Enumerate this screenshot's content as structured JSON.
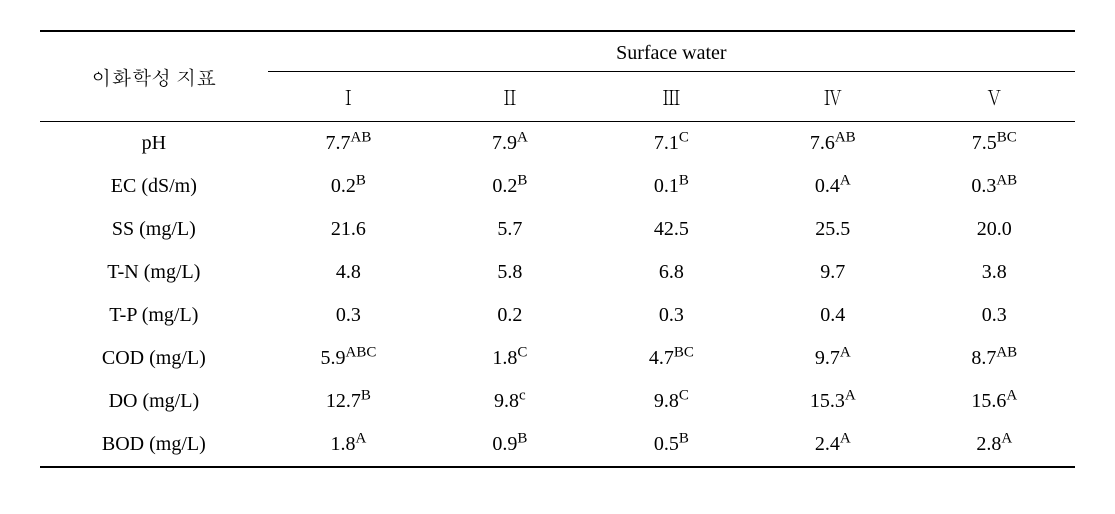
{
  "table": {
    "corner_label": "이화학성 지표",
    "spanning_header": "Surface water",
    "column_headers": [
      "Ⅰ",
      "Ⅱ",
      "Ⅲ",
      "Ⅳ",
      "Ⅴ"
    ],
    "rows": [
      {
        "label": "pH",
        "cells": [
          {
            "val": "7.7",
            "sup": "AB"
          },
          {
            "val": "7.9",
            "sup": "A"
          },
          {
            "val": "7.1",
            "sup": "C"
          },
          {
            "val": "7.6",
            "sup": "AB"
          },
          {
            "val": "7.5",
            "sup": "BC"
          }
        ]
      },
      {
        "label": "EC (dS/m)",
        "cells": [
          {
            "val": "0.2",
            "sup": "B"
          },
          {
            "val": "0.2",
            "sup": "B"
          },
          {
            "val": "0.1",
            "sup": "B"
          },
          {
            "val": "0.4",
            "sup": "A"
          },
          {
            "val": "0.3",
            "sup": "AB"
          }
        ]
      },
      {
        "label": "SS (mg/L)",
        "cells": [
          {
            "val": "21.6",
            "sup": ""
          },
          {
            "val": "5.7",
            "sup": ""
          },
          {
            "val": "42.5",
            "sup": ""
          },
          {
            "val": "25.5",
            "sup": ""
          },
          {
            "val": "20.0",
            "sup": ""
          }
        ]
      },
      {
        "label": "T-N (mg/L)",
        "cells": [
          {
            "val": "4.8",
            "sup": ""
          },
          {
            "val": "5.8",
            "sup": ""
          },
          {
            "val": "6.8",
            "sup": ""
          },
          {
            "val": "9.7",
            "sup": ""
          },
          {
            "val": "3.8",
            "sup": ""
          }
        ]
      },
      {
        "label": "T-P (mg/L)",
        "cells": [
          {
            "val": "0.3",
            "sup": ""
          },
          {
            "val": "0.2",
            "sup": ""
          },
          {
            "val": "0.3",
            "sup": ""
          },
          {
            "val": "0.4",
            "sup": ""
          },
          {
            "val": "0.3",
            "sup": ""
          }
        ]
      },
      {
        "label": "COD (mg/L)",
        "cells": [
          {
            "val": "5.9",
            "sup": "ABC"
          },
          {
            "val": "1.8",
            "sup": "C"
          },
          {
            "val": "4.7",
            "sup": "BC"
          },
          {
            "val": "9.7",
            "sup": "A"
          },
          {
            "val": "8.7",
            "sup": "AB"
          }
        ]
      },
      {
        "label": "DO (mg/L)",
        "cells": [
          {
            "val": "12.7",
            "sup": "B"
          },
          {
            "val": "9.8",
            "sup": "c"
          },
          {
            "val": "9.8",
            "sup": "C"
          },
          {
            "val": "15.3",
            "sup": "A"
          },
          {
            "val": "15.6",
            "sup": "A"
          }
        ]
      },
      {
        "label": "BOD (mg/L)",
        "cells": [
          {
            "val": "1.8",
            "sup": "A"
          },
          {
            "val": "0.9",
            "sup": "B"
          },
          {
            "val": "0.5",
            "sup": "B"
          },
          {
            "val": "2.4",
            "sup": "A"
          },
          {
            "val": "2.8",
            "sup": "A"
          }
        ]
      }
    ],
    "colors": {
      "text": "#000000",
      "background": "#ffffff",
      "rule": "#000000"
    },
    "fontsize_pt": 15
  }
}
